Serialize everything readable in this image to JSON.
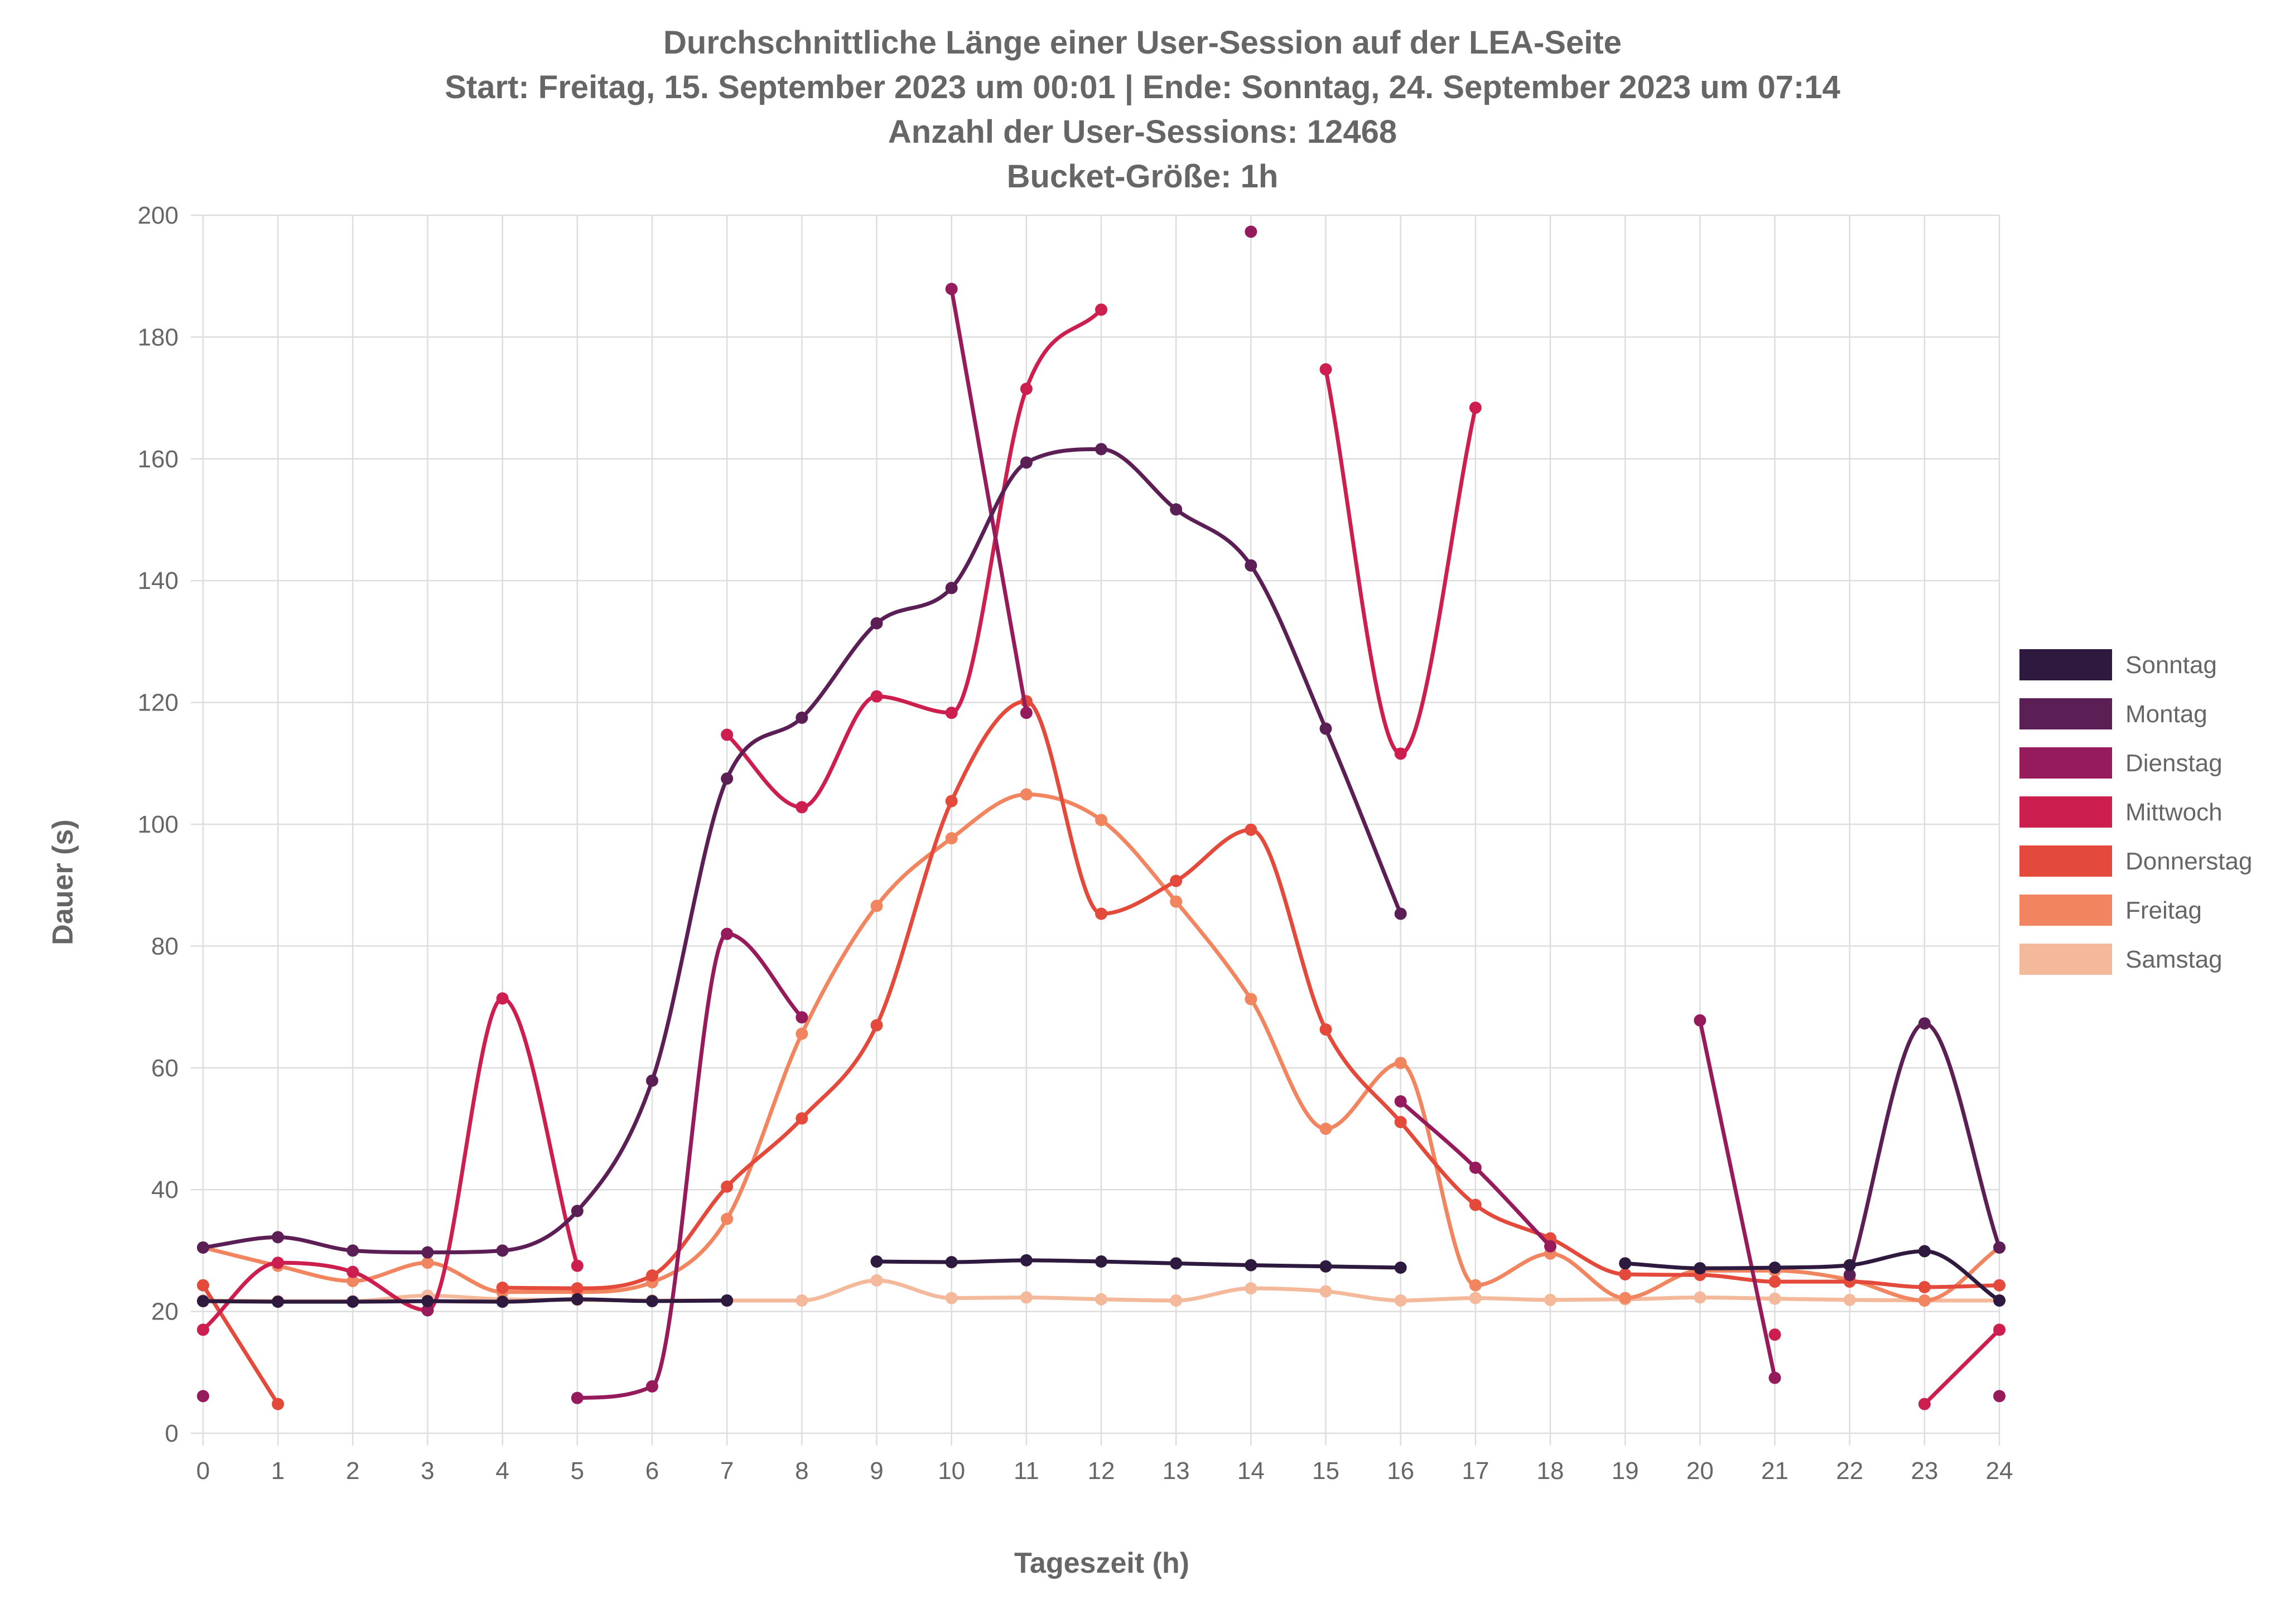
{
  "chart_data": {
    "type": "line",
    "title": [
      "Durchschnittliche Länge einer User-Session auf der LEA-Seite",
      "Start: Freitag, 15. September 2023 um 00:01 | Ende: Sonntag, 24. September 2023 um 07:14",
      "Anzahl der User-Sessions: 12468",
      "Bucket-Größe: 1h"
    ],
    "xlabel": "Tageszeit (h)",
    "ylabel": "Dauer (s)",
    "xlim": [
      0,
      24
    ],
    "ylim": [
      0,
      200
    ],
    "x_ticks": [
      "0",
      "1",
      "2",
      "3",
      "4",
      "5",
      "6",
      "7",
      "8",
      "9",
      "10",
      "11",
      "12",
      "13",
      "14",
      "15",
      "16",
      "17",
      "18",
      "19",
      "20",
      "21",
      "22",
      "23",
      "24"
    ],
    "y_ticks": [
      "0",
      "20",
      "40",
      "60",
      "80",
      "100",
      "120",
      "140",
      "160",
      "180",
      "200"
    ],
    "grid": true,
    "legend_position": "right",
    "series": [
      {
        "name": "Sonntag",
        "color": "#2e1a3e",
        "segments": [
          [
            [
              0,
              21.7
            ],
            [
              1,
              21.6
            ],
            [
              2,
              21.6
            ],
            [
              3,
              21.7
            ],
            [
              4,
              21.6
            ],
            [
              5,
              22.0
            ],
            [
              6,
              21.7
            ],
            [
              7,
              21.8
            ]
          ],
          [
            [
              9,
              28.2
            ],
            [
              10,
              28.1
            ],
            [
              11,
              28.4
            ],
            [
              12,
              28.2
            ],
            [
              13,
              27.9
            ],
            [
              14,
              27.6
            ],
            [
              15,
              27.4
            ],
            [
              16,
              27.2
            ]
          ],
          [
            [
              19,
              27.9
            ],
            [
              20,
              27.1
            ],
            [
              21,
              27.2
            ],
            [
              22,
              27.6
            ],
            [
              23,
              29.9
            ],
            [
              24,
              21.8
            ]
          ]
        ]
      },
      {
        "name": "Montag",
        "color": "#5c1f55",
        "segments": [
          [
            [
              0,
              30.5
            ],
            [
              1,
              32.2
            ],
            [
              2,
              30.0
            ],
            [
              3,
              29.7
            ],
            [
              4,
              30.0
            ],
            [
              5,
              36.5
            ],
            [
              6,
              57.9
            ],
            [
              7,
              107.5
            ],
            [
              8,
              117.5
            ],
            [
              9,
              133.0
            ],
            [
              10,
              138.8
            ],
            [
              11,
              159.4
            ],
            [
              12,
              161.6
            ],
            [
              13,
              151.7
            ],
            [
              14,
              142.5
            ],
            [
              15,
              115.7
            ],
            [
              16,
              85.3
            ]
          ],
          [
            [
              22,
              26.0
            ],
            [
              23,
              67.3
            ],
            [
              24,
              30.5
            ]
          ]
        ]
      },
      {
        "name": "Dienstag",
        "color": "#951b5c",
        "segments": [
          [
            [
              0,
              6.1
            ]
          ],
          [
            [
              3,
              20.2
            ]
          ],
          [
            [
              5,
              5.8
            ],
            [
              6,
              7.7
            ],
            [
              7,
              82.0
            ],
            [
              8,
              68.3
            ]
          ],
          [
            [
              10,
              187.9
            ],
            [
              11,
              118.3
            ]
          ],
          [
            [
              14,
              197.3
            ]
          ],
          [
            [
              16,
              54.5
            ],
            [
              17,
              43.6
            ],
            [
              18,
              30.7
            ]
          ],
          [
            [
              20,
              67.8
            ],
            [
              21,
              9.1
            ]
          ],
          [
            [
              24,
              6.1
            ]
          ]
        ]
      },
      {
        "name": "Mittwoch",
        "color": "#cc1f50",
        "segments": [
          [
            [
              0,
              17.0
            ],
            [
              1,
              28.0
            ],
            [
              2,
              26.5
            ],
            [
              3,
              20.2
            ],
            [
              4,
              71.4
            ],
            [
              5,
              27.5
            ]
          ],
          [
            [
              7,
              114.7
            ],
            [
              8,
              102.8
            ],
            [
              9,
              121.0
            ],
            [
              10,
              118.3
            ],
            [
              11,
              171.5
            ],
            [
              12,
              184.5
            ]
          ],
          [
            [
              15,
              174.7
            ],
            [
              16,
              111.6
            ],
            [
              17,
              168.4
            ]
          ],
          [
            [
              21,
              16.2
            ]
          ],
          [
            [
              23,
              4.8
            ],
            [
              24,
              17.0
            ]
          ]
        ]
      },
      {
        "name": "Donnerstag",
        "color": "#e34a3b",
        "segments": [
          [
            [
              0,
              24.3
            ],
            [
              1,
              4.8
            ]
          ],
          [
            [
              4,
              23.9
            ],
            [
              5,
              23.8
            ],
            [
              6,
              25.9
            ],
            [
              7,
              40.5
            ],
            [
              8,
              51.7
            ],
            [
              9,
              67.0
            ],
            [
              10,
              103.8
            ],
            [
              11,
              120.2
            ],
            [
              12,
              85.3
            ],
            [
              13,
              90.7
            ],
            [
              14,
              99.1
            ],
            [
              15,
              66.3
            ],
            [
              16,
              51.1
            ],
            [
              17,
              37.5
            ],
            [
              18,
              32.0
            ],
            [
              19,
              26.1
            ],
            [
              20,
              26.0
            ],
            [
              21,
              24.9
            ],
            [
              22,
              24.9
            ],
            [
              23,
              24.0
            ],
            [
              24,
              24.3
            ]
          ]
        ]
      },
      {
        "name": "Freitag",
        "color": "#f08560",
        "segments": [
          [
            [
              0,
              30.5
            ],
            [
              1,
              27.5
            ],
            [
              2,
              25.0
            ],
            [
              3,
              28.0
            ],
            [
              4,
              23.2
            ],
            [
              5,
              23.2
            ],
            [
              6,
              24.8
            ],
            [
              7,
              35.2
            ],
            [
              8,
              65.6
            ],
            [
              9,
              86.6
            ],
            [
              10,
              97.7
            ],
            [
              11,
              104.9
            ],
            [
              12,
              100.7
            ],
            [
              13,
              87.3
            ],
            [
              14,
              71.3
            ],
            [
              15,
              50.0
            ],
            [
              16,
              60.8
            ],
            [
              17,
              24.3
            ],
            [
              18,
              29.5
            ],
            [
              19,
              22.2
            ],
            [
              20,
              26.7
            ],
            [
              21,
              26.7
            ],
            [
              22,
              25.2
            ],
            [
              23,
              21.8
            ],
            [
              24,
              30.5
            ]
          ]
        ]
      },
      {
        "name": "Samstag",
        "color": "#f4b89a",
        "segments": [
          [
            [
              0,
              21.8
            ],
            [
              1,
              21.7
            ],
            [
              2,
              21.7
            ],
            [
              3,
              22.6
            ],
            [
              4,
              22.0
            ],
            [
              5,
              21.9
            ],
            [
              6,
              21.8
            ],
            [
              7,
              21.8
            ],
            [
              8,
              21.8
            ],
            [
              9,
              25.1
            ],
            [
              10,
              22.2
            ],
            [
              11,
              22.3
            ],
            [
              12,
              22.0
            ],
            [
              13,
              21.8
            ],
            [
              14,
              23.8
            ],
            [
              15,
              23.3
            ],
            [
              16,
              21.8
            ],
            [
              17,
              22.2
            ],
            [
              18,
              21.9
            ],
            [
              19,
              22.0
            ],
            [
              20,
              22.3
            ],
            [
              21,
              22.1
            ],
            [
              22,
              21.9
            ],
            [
              23,
              21.8
            ],
            [
              24,
              21.8
            ]
          ]
        ]
      }
    ]
  }
}
